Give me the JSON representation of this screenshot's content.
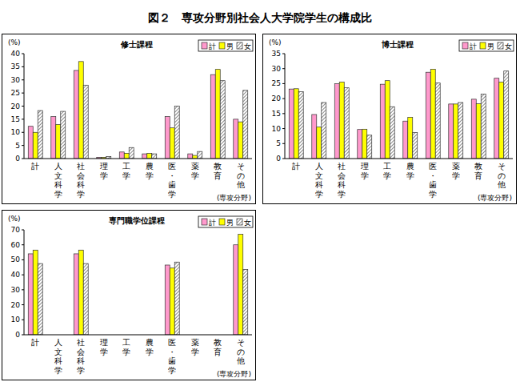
{
  "title": "図２　専攻分野別社会人大学院学生の構成比",
  "chart_data": [
    {
      "type": "bar",
      "title": "修士課程",
      "x_label": "(専攻分野)",
      "y_label": "(%)",
      "categories": [
        "計",
        "人文科学",
        "社会科学",
        "理学",
        "工学",
        "農学",
        "医・歯学",
        "薬学",
        "教育",
        "その他"
      ],
      "series": [
        {
          "name": "計",
          "color": "#ff99cc",
          "values": [
            12.3,
            16,
            33.6,
            0.5,
            2.5,
            1.8,
            16,
            1.8,
            32,
            15
          ]
        },
        {
          "name": "男",
          "color": "#ffff00",
          "values": [
            10,
            13,
            37,
            0.5,
            2,
            2,
            11.7,
            1.2,
            34,
            14
          ]
        },
        {
          "name": "女",
          "color": "#555555",
          "values": [
            18.3,
            18,
            28,
            0.8,
            4.2,
            1.8,
            20,
            2.7,
            29.7,
            26
          ]
        }
      ],
      "ylim": [
        0,
        40
      ],
      "yticks": [
        0,
        5,
        10,
        15,
        20,
        25,
        30,
        35,
        40
      ],
      "grid": false,
      "legend": "top-right"
    },
    {
      "type": "bar",
      "title": "博士課程",
      "x_label": "(専攻分野)",
      "y_label": "(%)",
      "categories": [
        "計",
        "人文科学",
        "社会科学",
        "理学",
        "工学",
        "農学",
        "医・歯学",
        "薬学",
        "教育",
        "その他"
      ],
      "series": [
        {
          "name": "計",
          "color": "#ff99cc",
          "values": [
            23.2,
            14.7,
            25,
            9.7,
            24.8,
            12.5,
            28.8,
            18.2,
            19.8,
            26.8
          ]
        },
        {
          "name": "男",
          "color": "#ffff00",
          "values": [
            23.3,
            10.5,
            25.5,
            9.8,
            26,
            13.8,
            29.8,
            18.2,
            18.3,
            25.5
          ]
        },
        {
          "name": "女",
          "color": "#555555",
          "values": [
            22.3,
            18.7,
            23.6,
            7.8,
            17.3,
            8.7,
            25.2,
            18.7,
            21.5,
            29.2
          ]
        }
      ],
      "ylim": [
        0,
        35
      ],
      "yticks": [
        0,
        5,
        10,
        15,
        20,
        25,
        30,
        35
      ],
      "grid": false,
      "legend": "top-right"
    },
    {
      "type": "bar",
      "title": "専門職学位課程",
      "x_label": "(専攻分野)",
      "y_label": "(%)",
      "categories": [
        "計",
        "人文科学",
        "社会科学",
        "理学",
        "工学",
        "農学",
        "医・歯学",
        "薬学",
        "教育",
        "その他"
      ],
      "series": [
        {
          "name": "計",
          "color": "#ff99cc",
          "values": [
            54,
            null,
            54,
            null,
            null,
            null,
            46.5,
            null,
            null,
            60
          ]
        },
        {
          "name": "男",
          "color": "#ffff00",
          "values": [
            56.5,
            null,
            56.5,
            null,
            null,
            null,
            44.5,
            null,
            null,
            67
          ]
        },
        {
          "name": "女",
          "color": "#555555",
          "values": [
            47.5,
            null,
            47.5,
            null,
            null,
            null,
            48.5,
            null,
            null,
            43.5
          ]
        }
      ],
      "ylim": [
        0,
        70
      ],
      "yticks": [
        0,
        10,
        20,
        30,
        40,
        50,
        60,
        70
      ],
      "grid": false,
      "legend": "top-right"
    }
  ]
}
